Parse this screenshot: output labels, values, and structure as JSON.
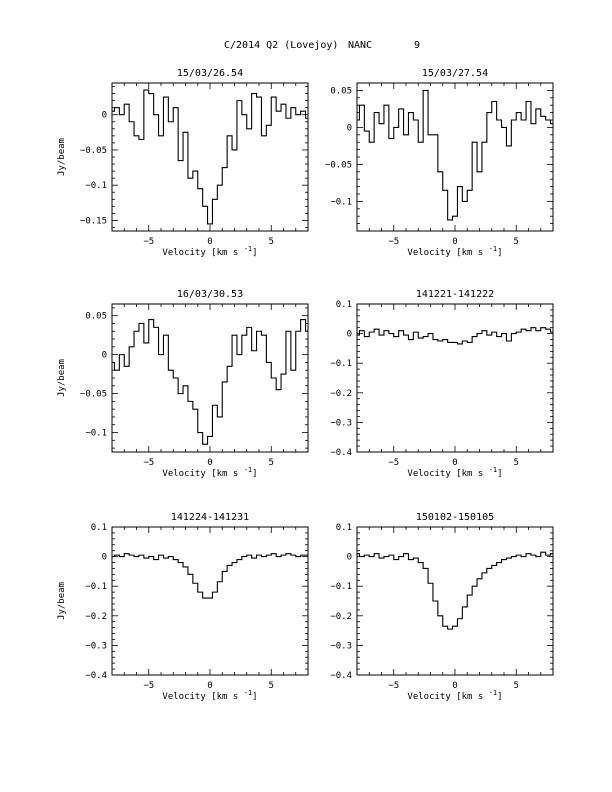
{
  "header": {
    "title": "C/2014 Q2 (Lovejoy)",
    "source": "NANC",
    "number": "9"
  },
  "chart_data": [
    {
      "type": "line",
      "title": "15/03/26.54",
      "xlabel": "Velocity [km s",
      "xlabel_sup": "-1",
      "xlabel_tail": "]",
      "ylabel": "Jy/beam",
      "xlim": [
        -8,
        8
      ],
      "ylim": [
        -0.165,
        0.045
      ],
      "xticks": [
        -5,
        0,
        5
      ],
      "xtick_labels": [
        "−5",
        "0",
        "5"
      ],
      "yticks": [
        0,
        -0.05,
        -0.1,
        -0.15
      ],
      "ytick_labels": [
        "0",
        "−0.05",
        "−0.1",
        "−0.15"
      ],
      "x": [
        -8,
        -7.6,
        -7.2,
        -6.8,
        -6.4,
        -6,
        -5.6,
        -5.2,
        -4.8,
        -4.4,
        -4,
        -3.6,
        -3.2,
        -2.8,
        -2.4,
        -2,
        -1.6,
        -1.2,
        -0.8,
        -0.4,
        0,
        0.4,
        0.8,
        1.2,
        1.6,
        2,
        2.4,
        2.8,
        3.2,
        3.6,
        4,
        4.4,
        4.8,
        5.2,
        5.6,
        6,
        6.4,
        6.8,
        7.2,
        7.6,
        8
      ],
      "y": [
        0.005,
        0.01,
        0.0,
        0.015,
        -0.01,
        -0.03,
        -0.035,
        0.035,
        0.03,
        0.0,
        -0.03,
        0.025,
        -0.01,
        0.01,
        -0.065,
        -0.025,
        -0.09,
        -0.08,
        -0.105,
        -0.13,
        -0.155,
        -0.12,
        -0.1,
        -0.075,
        -0.03,
        -0.05,
        0.02,
        0.0,
        -0.02,
        0.03,
        0.025,
        -0.03,
        -0.015,
        0.025,
        0.005,
        0.015,
        -0.005,
        0.01,
        0.0,
        0.005,
        -0.005
      ]
    },
    {
      "type": "line",
      "title": "15/03/27.54",
      "xlabel": "Velocity [km s",
      "xlabel_sup": "-1",
      "xlabel_tail": "]",
      "ylabel": "",
      "xlim": [
        -8,
        8
      ],
      "ylim": [
        -0.14,
        0.06
      ],
      "xticks": [
        -5,
        0,
        5
      ],
      "xtick_labels": [
        "−5",
        "0",
        "5"
      ],
      "yticks": [
        0.05,
        0,
        -0.05,
        -0.1
      ],
      "ytick_labels": [
        "0.05",
        "0",
        "−0.05",
        "−0.1"
      ],
      "x": [
        -8,
        -7.6,
        -7.2,
        -6.8,
        -6.4,
        -6,
        -5.6,
        -5.2,
        -4.8,
        -4.4,
        -4,
        -3.6,
        -3.2,
        -2.8,
        -2.4,
        -2,
        -1.6,
        -1.2,
        -0.8,
        -0.4,
        0,
        0.4,
        0.8,
        1.2,
        1.6,
        2,
        2.4,
        2.8,
        3.2,
        3.6,
        4,
        4.4,
        4.8,
        5.2,
        5.6,
        6,
        6.4,
        6.8,
        7.2,
        7.6,
        8
      ],
      "y": [
        0.01,
        0.03,
        -0.005,
        -0.02,
        0.02,
        0.005,
        0.03,
        -0.015,
        0.0,
        0.025,
        -0.01,
        0.02,
        0.01,
        -0.02,
        0.05,
        -0.01,
        -0.01,
        -0.06,
        -0.085,
        -0.125,
        -0.12,
        -0.08,
        -0.1,
        -0.085,
        -0.02,
        -0.06,
        -0.02,
        0.02,
        0.035,
        0.01,
        0.0,
        -0.025,
        0.01,
        0.02,
        0.01,
        0.035,
        0.005,
        0.025,
        0.015,
        0.01,
        0.005
      ]
    },
    {
      "type": "line",
      "title": "16/03/30.53",
      "xlabel": "Velocity [km s",
      "xlabel_sup": "-1",
      "xlabel_tail": "]",
      "ylabel": "Jy/beam",
      "xlim": [
        -8,
        8
      ],
      "ylim": [
        -0.125,
        0.065
      ],
      "xticks": [
        -5,
        0,
        5
      ],
      "xtick_labels": [
        "−5",
        "0",
        "5"
      ],
      "yticks": [
        0.05,
        0,
        -0.05,
        -0.1
      ],
      "ytick_labels": [
        "0.05",
        "0",
        "−0.05",
        "−0.1"
      ],
      "x": [
        -8,
        -7.6,
        -7.2,
        -6.8,
        -6.4,
        -6,
        -5.6,
        -5.2,
        -4.8,
        -4.4,
        -4,
        -3.6,
        -3.2,
        -2.8,
        -2.4,
        -2,
        -1.6,
        -1.2,
        -0.8,
        -0.4,
        0,
        0.4,
        0.8,
        1.2,
        1.6,
        2,
        2.4,
        2.8,
        3.2,
        3.6,
        4,
        4.4,
        4.8,
        5.2,
        5.6,
        6,
        6.4,
        6.8,
        7.2,
        7.6,
        8
      ],
      "y": [
        -0.01,
        -0.02,
        0.0,
        -0.015,
        0.01,
        0.03,
        0.04,
        0.015,
        0.045,
        0.035,
        0.0,
        0.025,
        -0.02,
        -0.03,
        -0.05,
        -0.04,
        -0.06,
        -0.07,
        -0.1,
        -0.115,
        -0.105,
        -0.065,
        -0.08,
        -0.035,
        -0.015,
        0.025,
        0.0,
        0.025,
        0.035,
        0.005,
        0.03,
        0.025,
        -0.01,
        -0.03,
        -0.045,
        -0.025,
        0.03,
        -0.02,
        0.03,
        0.045,
        0.03
      ]
    },
    {
      "type": "line",
      "title": "141221-141222",
      "xlabel": "Velocity [km s",
      "xlabel_sup": "-1",
      "xlabel_tail": "]",
      "ylabel": "",
      "xlim": [
        -8,
        8
      ],
      "ylim": [
        -0.4,
        0.1
      ],
      "xticks": [
        -5,
        0,
        5
      ],
      "xtick_labels": [
        "−5",
        "0",
        "5"
      ],
      "yticks": [
        0.1,
        0,
        -0.1,
        -0.2,
        -0.3,
        -0.4
      ],
      "ytick_labels": [
        "0.1",
        "0",
        "−0.1",
        "−0.2",
        "−0.3",
        "−0.4"
      ],
      "x": [
        -8,
        -7.6,
        -7.2,
        -6.8,
        -6.4,
        -6,
        -5.6,
        -5.2,
        -4.8,
        -4.4,
        -4,
        -3.6,
        -3.2,
        -2.8,
        -2.4,
        -2,
        -1.6,
        -1.2,
        -0.8,
        -0.4,
        0,
        0.4,
        0.8,
        1.2,
        1.6,
        2,
        2.4,
        2.8,
        3.2,
        3.6,
        4,
        4.4,
        4.8,
        5.2,
        5.6,
        6,
        6.4,
        6.8,
        7.2,
        7.6,
        8
      ],
      "y": [
        -0.005,
        0.01,
        -0.01,
        0.005,
        0.015,
        -0.005,
        0.01,
        0.0,
        -0.01,
        0.01,
        -0.005,
        -0.02,
        0.005,
        -0.015,
        -0.01,
        0.0,
        -0.02,
        -0.025,
        -0.02,
        -0.03,
        -0.03,
        -0.035,
        -0.025,
        -0.03,
        -0.01,
        0.0,
        0.01,
        -0.005,
        0.005,
        -0.01,
        0.0,
        -0.025,
        0.0,
        0.005,
        0.015,
        0.01,
        0.02,
        0.01,
        0.02,
        0.015,
        0.005
      ]
    },
    {
      "type": "line",
      "title": "141224-141231",
      "xlabel": "Velocity [km s",
      "xlabel_sup": "-1",
      "xlabel_tail": "]",
      "ylabel": "Jy/beam",
      "xlim": [
        -8,
        8
      ],
      "ylim": [
        -0.4,
        0.1
      ],
      "xticks": [
        -5,
        0,
        5
      ],
      "xtick_labels": [
        "−5",
        "0",
        "5"
      ],
      "yticks": [
        0.1,
        0,
        -0.1,
        -0.2,
        -0.3,
        -0.4
      ],
      "ytick_labels": [
        "0.1",
        "0",
        "−0.1",
        "−0.2",
        "−0.3",
        "−0.4"
      ],
      "x": [
        -8,
        -7.6,
        -7.2,
        -6.8,
        -6.4,
        -6,
        -5.6,
        -5.2,
        -4.8,
        -4.4,
        -4,
        -3.6,
        -3.2,
        -2.8,
        -2.4,
        -2,
        -1.6,
        -1.2,
        -0.8,
        -0.4,
        0,
        0.4,
        0.8,
        1.2,
        1.6,
        2,
        2.4,
        2.8,
        3.2,
        3.6,
        4,
        4.4,
        4.8,
        5.2,
        5.6,
        6,
        6.4,
        6.8,
        7.2,
        7.6,
        8
      ],
      "y": [
        0.0,
        0.005,
        0.0,
        0.01,
        0.005,
        0.0,
        0.005,
        -0.005,
        0.0,
        -0.01,
        0.005,
        -0.005,
        0.0,
        -0.01,
        -0.02,
        -0.035,
        -0.06,
        -0.09,
        -0.12,
        -0.14,
        -0.14,
        -0.12,
        -0.085,
        -0.05,
        -0.03,
        -0.02,
        -0.01,
        0.0,
        0.005,
        -0.005,
        0.005,
        0.0,
        0.005,
        0.01,
        0.0,
        0.005,
        0.01,
        0.005,
        0.0,
        0.005,
        0.005
      ]
    },
    {
      "type": "line",
      "title": "150102-150105",
      "xlabel": "Velocity [km s",
      "xlabel_sup": "-1",
      "xlabel_tail": "]",
      "ylabel": "",
      "xlim": [
        -8,
        8
      ],
      "ylim": [
        -0.4,
        0.1
      ],
      "xticks": [
        -5,
        0,
        5
      ],
      "xtick_labels": [
        "−5",
        "0",
        "5"
      ],
      "yticks": [
        0.1,
        0,
        -0.1,
        -0.2,
        -0.3,
        -0.4
      ],
      "ytick_labels": [
        "0.1",
        "0",
        "−0.1",
        "−0.2",
        "−0.3",
        "−0.4"
      ],
      "x": [
        -8,
        -7.6,
        -7.2,
        -6.8,
        -6.4,
        -6,
        -5.6,
        -5.2,
        -4.8,
        -4.4,
        -4,
        -3.6,
        -3.2,
        -2.8,
        -2.4,
        -2,
        -1.6,
        -1.2,
        -0.8,
        -0.4,
        0,
        0.4,
        0.8,
        1.2,
        1.6,
        2,
        2.4,
        2.8,
        3.2,
        3.6,
        4,
        4.4,
        4.8,
        5.2,
        5.6,
        6,
        6.4,
        6.8,
        7.2,
        7.6,
        8
      ],
      "y": [
        0.01,
        0.0,
        0.005,
        0.0,
        0.01,
        -0.005,
        0.0,
        0.005,
        -0.01,
        0.0,
        0.01,
        -0.01,
        -0.005,
        -0.02,
        -0.04,
        -0.09,
        -0.15,
        -0.2,
        -0.235,
        -0.245,
        -0.235,
        -0.21,
        -0.17,
        -0.13,
        -0.1,
        -0.075,
        -0.055,
        -0.04,
        -0.03,
        -0.02,
        -0.01,
        -0.005,
        0.0,
        0.005,
        0.0,
        0.01,
        0.005,
        0.0,
        0.015,
        0.005,
        0.01
      ]
    }
  ]
}
